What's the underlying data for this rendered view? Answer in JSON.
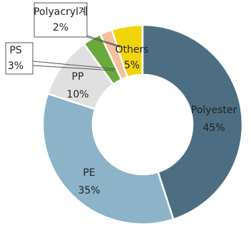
{
  "chart_data": {
    "type": "donut",
    "categories": [
      "Polyester",
      "PE",
      "PP",
      "PS",
      "Polyacryl계",
      "Others"
    ],
    "values": [
      45,
      35,
      10,
      3,
      2,
      5
    ],
    "value_labels": [
      "45%",
      "35%",
      "10%",
      "3%",
      "2%",
      "5%"
    ],
    "colors": [
      "#4d6e82",
      "#8db3c9",
      "#e0e0e0",
      "#6aaa3c",
      "#f5c09a",
      "#f2d40c"
    ]
  }
}
